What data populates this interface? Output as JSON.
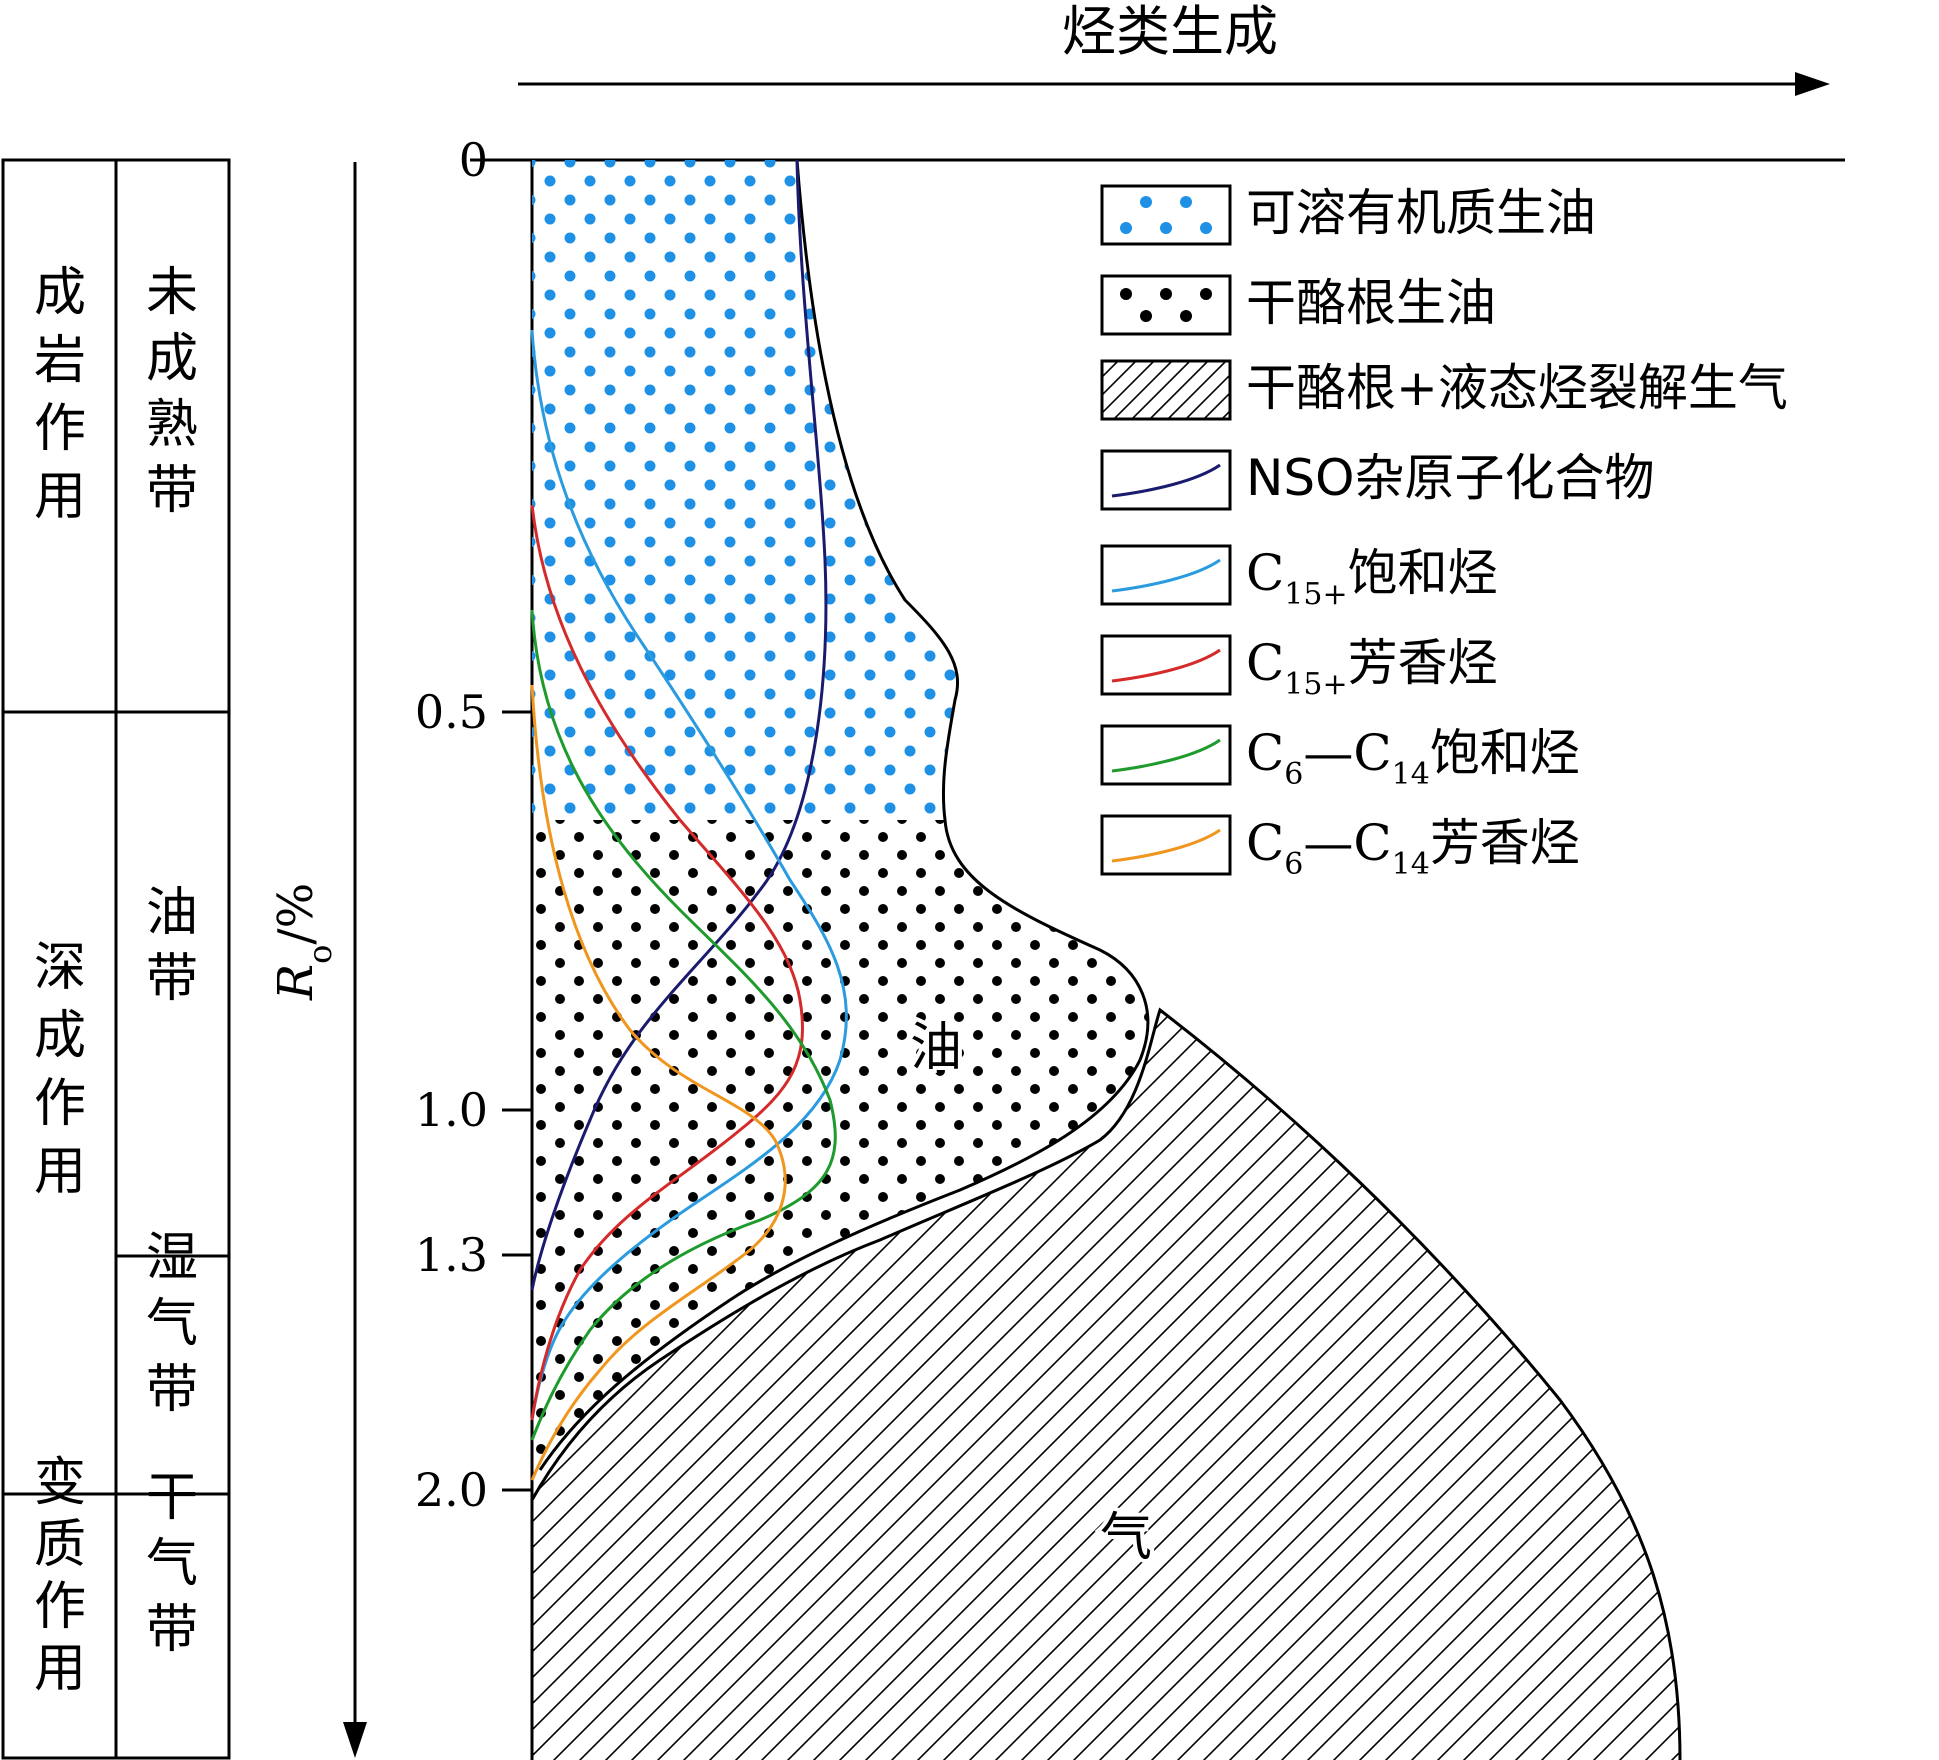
{
  "header": {
    "title": "烃类生成"
  },
  "axis": {
    "label_main": "R",
    "label_sub": "o",
    "label_unit": "/%",
    "ticks": [
      {
        "label": "0",
        "value": 0
      },
      {
        "label": "0.5",
        "value": 0.5
      },
      {
        "label": "1.0",
        "value": 1.0
      },
      {
        "label": "1.3",
        "value": 1.3
      },
      {
        "label": "2.0",
        "value": 2.0
      }
    ]
  },
  "stages": [
    {
      "name": "成岩作用",
      "zones": [
        "未成熟带"
      ]
    },
    {
      "name": "深成作用",
      "zones": [
        "油带",
        "湿气带"
      ]
    },
    {
      "name": "变质作用",
      "zones": [
        "干气带"
      ]
    }
  ],
  "regions": {
    "oil": "油",
    "gas": "气"
  },
  "legend": [
    {
      "key": "soluble-om-oil",
      "label": "可溶有机质生油",
      "pattern": "blue-dots",
      "color": "#1e90e6"
    },
    {
      "key": "kerogen-oil",
      "label": "干酪根生油",
      "pattern": "black-dots",
      "color": "#000000"
    },
    {
      "key": "kerogen-liquid-cracking-gas",
      "label": "干酪根+液态烃裂解生气",
      "pattern": "hatch",
      "color": "#000000"
    },
    {
      "key": "nso-compounds",
      "label": "NSO杂原子化合物",
      "pattern": "line",
      "color": "#1a1a6e"
    },
    {
      "key": "c15-saturated",
      "label": "饱和烃",
      "prefix": "C",
      "sub": "15+",
      "pattern": "line",
      "color": "#2b9be0"
    },
    {
      "key": "c15-aromatic",
      "label": "芳香烃",
      "prefix": "C",
      "sub": "15+",
      "pattern": "line",
      "color": "#d42a2a"
    },
    {
      "key": "c6-c14-saturated",
      "label": "饱和烃",
      "prefix": "C",
      "sub": "6",
      "mid": "—C",
      "sub2": "14",
      "pattern": "line",
      "color": "#1f9a2c"
    },
    {
      "key": "c6-c14-aromatic",
      "label": "芳香烃",
      "prefix": "C",
      "sub": "6",
      "mid": "—C",
      "sub2": "14",
      "pattern": "line",
      "color": "#f0961e"
    }
  ]
}
